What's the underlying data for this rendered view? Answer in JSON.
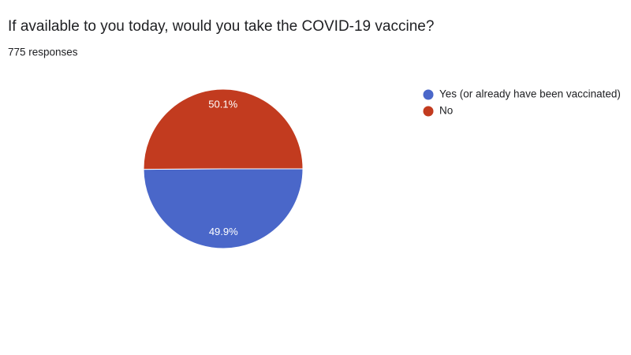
{
  "chart_data": {
    "type": "pie",
    "title": "If available to you today, would you take the COVID-19 vaccine?",
    "subtitle": "775 responses",
    "categories": [
      "Yes (or already have been vaccinated)",
      "No"
    ],
    "values": [
      49.9,
      50.1
    ],
    "value_labels": [
      "49.9%",
      "50.1%"
    ],
    "colors": [
      "#4a67c9",
      "#c23b1f"
    ],
    "legend": "right"
  }
}
